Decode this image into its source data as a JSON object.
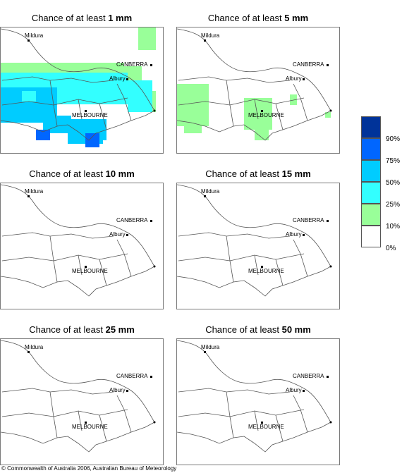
{
  "panels": [
    {
      "title_prefix": "Chance of at least ",
      "title_amount": "1 mm"
    },
    {
      "title_prefix": "Chance of at least ",
      "title_amount": "5 mm"
    },
    {
      "title_prefix": "Chance of at least ",
      "title_amount": "10 mm"
    },
    {
      "title_prefix": "Chance of at least ",
      "title_amount": "15 mm"
    },
    {
      "title_prefix": "Chance of at least ",
      "title_amount": "25 mm"
    },
    {
      "title_prefix": "Chance of at least ",
      "title_amount": "50 mm"
    }
  ],
  "places": {
    "mildura": "Mildura",
    "canberra": "CANBERRA",
    "albury": "Albury",
    "melbourne": "MELBOURNE"
  },
  "legend": {
    "labels": [
      "90%",
      "75%",
      "50%",
      "25%",
      "10%",
      "0%"
    ],
    "colors": [
      "#003399",
      "#0066ff",
      "#00ccff",
      "#33ffff",
      "#99ff99",
      "#ffffff"
    ]
  },
  "copyright": "© Commonwealth of Australia 2006, Australian Bureau of Meteorology"
}
